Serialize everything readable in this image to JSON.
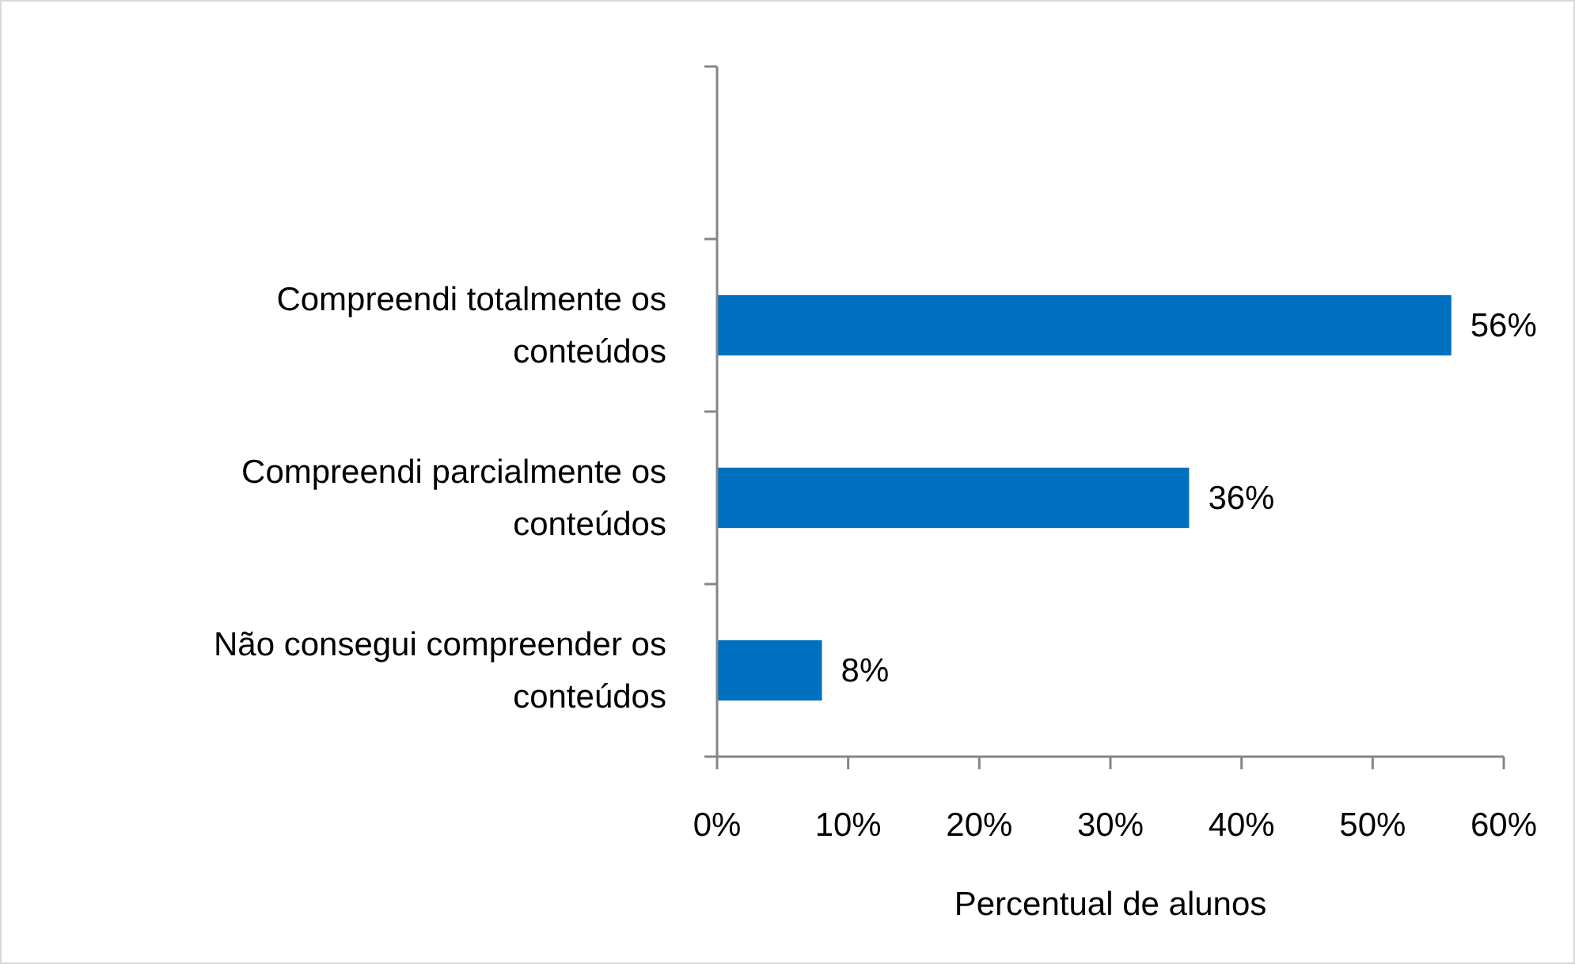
{
  "chart_data": {
    "type": "bar",
    "orientation": "horizontal",
    "categories": [
      null,
      "Compreendi totalmente os conteúdos",
      "Compreendi parcialmente os conteúdos",
      "Não consegui compreender os conteúdos"
    ],
    "values": [
      null,
      56,
      36,
      8
    ],
    "color": "#0070c0",
    "value_labels": [
      null,
      "56%",
      "36%",
      "8%"
    ],
    "xlabel": "Percentual de alunos",
    "xlim": [
      0,
      60
    ],
    "xticks": [
      {
        "value": 0,
        "label": "0%"
      },
      {
        "value": 10,
        "label": "10%"
      },
      {
        "value": 20,
        "label": "20%"
      },
      {
        "value": 30,
        "label": "30%"
      },
      {
        "value": 40,
        "label": "40%"
      },
      {
        "value": 50,
        "label": "50%"
      },
      {
        "value": 60,
        "label": "60%"
      }
    ],
    "grid": false
  }
}
